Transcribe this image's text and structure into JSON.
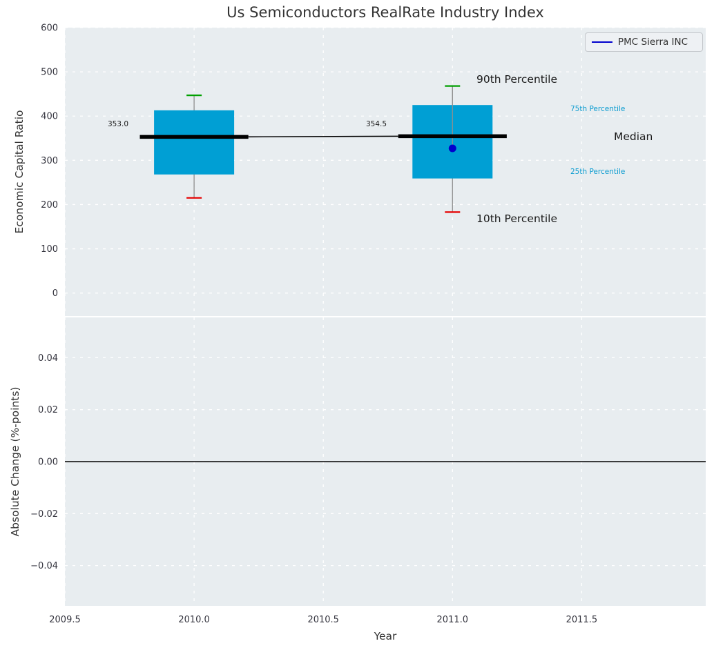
{
  "chart_data": {
    "type": "boxplot",
    "title": "Us Semiconductors RealRate Industry Index",
    "xlabel": "Year",
    "legend": {
      "label": "PMC Sierra INC"
    },
    "x_axis": {
      "xlim": [
        2009.5,
        2011.98
      ],
      "xticks": [
        2009.5,
        2010.0,
        2010.5,
        2011.0,
        2011.5
      ],
      "xtick_labels": [
        "2009.5",
        "2010.0",
        "2010.5",
        "2011.0",
        "2011.5"
      ]
    },
    "top_panel": {
      "ylabel": "Economic Capital Ratio",
      "ylim": [
        -52,
        600
      ],
      "yticks": [
        600,
        500,
        400,
        300,
        200,
        100,
        0
      ],
      "ytick_labels": [
        "600",
        "500",
        "400",
        "300",
        "200",
        "100",
        "0"
      ],
      "boxes": [
        {
          "x": 2010,
          "q1": 268,
          "q3": 413,
          "median": 353.0,
          "median_label": "353.0",
          "whisker_low": 215,
          "whisker_high": 447
        },
        {
          "x": 2011,
          "q1": 259,
          "q3": 425,
          "median": 354.5,
          "median_label": "354.5",
          "whisker_low": 183,
          "whisker_high": 468
        }
      ],
      "company_point": {
        "x": 2011,
        "y": 327,
        "name": "PMC Sierra INC"
      },
      "annotations": {
        "p90": "90th Percentile",
        "p10": "10th Percentile",
        "p75": "75th Percentile",
        "p25": "25th Percentile",
        "median": "Median"
      }
    },
    "bottom_panel": {
      "ylabel": "Absolute Change (%-points)",
      "ylim": [
        -0.0555,
        0.0555
      ],
      "yticks": [
        0.04,
        0.02,
        0,
        -0.02,
        -0.04
      ],
      "ytick_labels": [
        "0.04",
        "0.02",
        "0.00",
        "−0.02",
        "−0.04"
      ],
      "zero_line": 0
    },
    "colors": {
      "background": "#e8edf0",
      "grid": "#ffffff",
      "box_fill": "#009fd4",
      "whisker": "#8f8f8f",
      "cap_high": "#00a000",
      "cap_low": "#e60000",
      "median_line": "#000000",
      "company_point": "#0000cd",
      "percentile_text": "#0c9cd0",
      "tick_text": "#35353f",
      "title_text": "#333333"
    }
  }
}
